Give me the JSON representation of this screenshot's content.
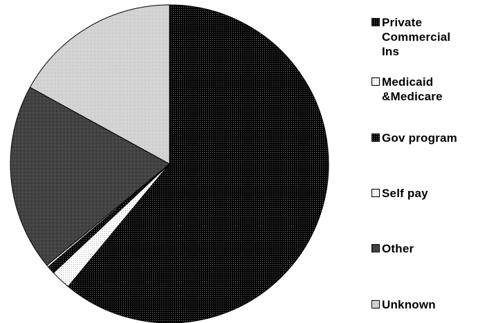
{
  "chart_data": {
    "type": "pie",
    "title": "",
    "start_angle_deg": 0,
    "direction": "clockwise",
    "slices": [
      {
        "label": "Private\nCommercial\nIns",
        "value": 61.0,
        "pattern": "dots-dark"
      },
      {
        "label": "Medicaid\n&Medicare",
        "value": 2.0,
        "pattern": "dots-light"
      },
      {
        "label": "Gov program",
        "value": 0.8,
        "pattern": "dots-dark"
      },
      {
        "label": "Self pay",
        "value": 0.2,
        "pattern": "dots-light"
      },
      {
        "label": "Other",
        "value": 19.0,
        "pattern": "dots-mid"
      },
      {
        "label": "Unknown",
        "value": 17.0,
        "pattern": "dots-lighter"
      }
    ],
    "legend_position": "right"
  },
  "colors": {
    "dots-dark": "#000000",
    "dots-light": "#ffffff",
    "dots-mid": "#3a3a3a",
    "dots-lighter": "#c8c8c8"
  }
}
